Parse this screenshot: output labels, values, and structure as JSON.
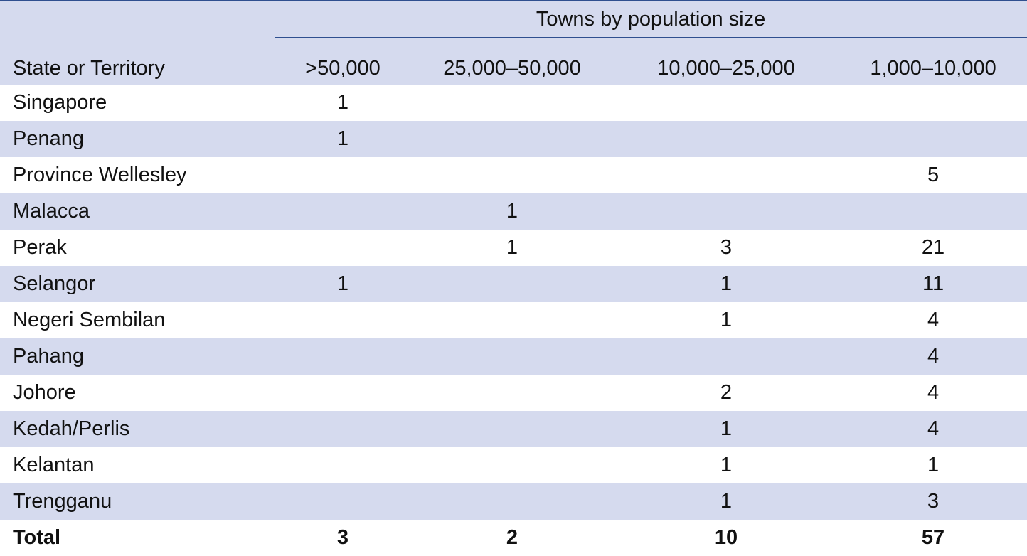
{
  "header": {
    "spanner": "Towns by population size",
    "row_label": "State or Territory",
    "columns": [
      ">50,000",
      "25,000–50,000",
      "10,000–25,000",
      "1,000–10,000"
    ]
  },
  "rows": [
    {
      "state": "Singapore",
      "values": [
        "1",
        "",
        "",
        ""
      ]
    },
    {
      "state": "Penang",
      "values": [
        "1",
        "",
        "",
        ""
      ]
    },
    {
      "state": "Province Wellesley",
      "values": [
        "",
        "",
        "",
        "5"
      ]
    },
    {
      "state": "Malacca",
      "values": [
        "",
        "1",
        "",
        ""
      ]
    },
    {
      "state": "Perak",
      "values": [
        "",
        "1",
        "3",
        "21"
      ]
    },
    {
      "state": "Selangor",
      "values": [
        "1",
        "",
        "1",
        "11"
      ]
    },
    {
      "state": "Negeri Sembilan",
      "values": [
        "",
        "",
        "1",
        "4"
      ]
    },
    {
      "state": "Pahang",
      "values": [
        "",
        "",
        "",
        "4"
      ]
    },
    {
      "state": "Johore",
      "values": [
        "",
        "",
        "2",
        "4"
      ]
    },
    {
      "state": "Kedah/Perlis",
      "values": [
        "",
        "",
        "1",
        "4"
      ]
    },
    {
      "state": "Kelantan",
      "values": [
        "",
        "",
        "1",
        "1"
      ]
    },
    {
      "state": "Trengganu",
      "values": [
        "",
        "",
        "1",
        "3"
      ]
    }
  ],
  "total": {
    "label": "Total",
    "values": [
      "3",
      "2",
      "10",
      "57"
    ]
  },
  "colors": {
    "stripe": "#d5daee",
    "rule": "#2f4f8f"
  }
}
